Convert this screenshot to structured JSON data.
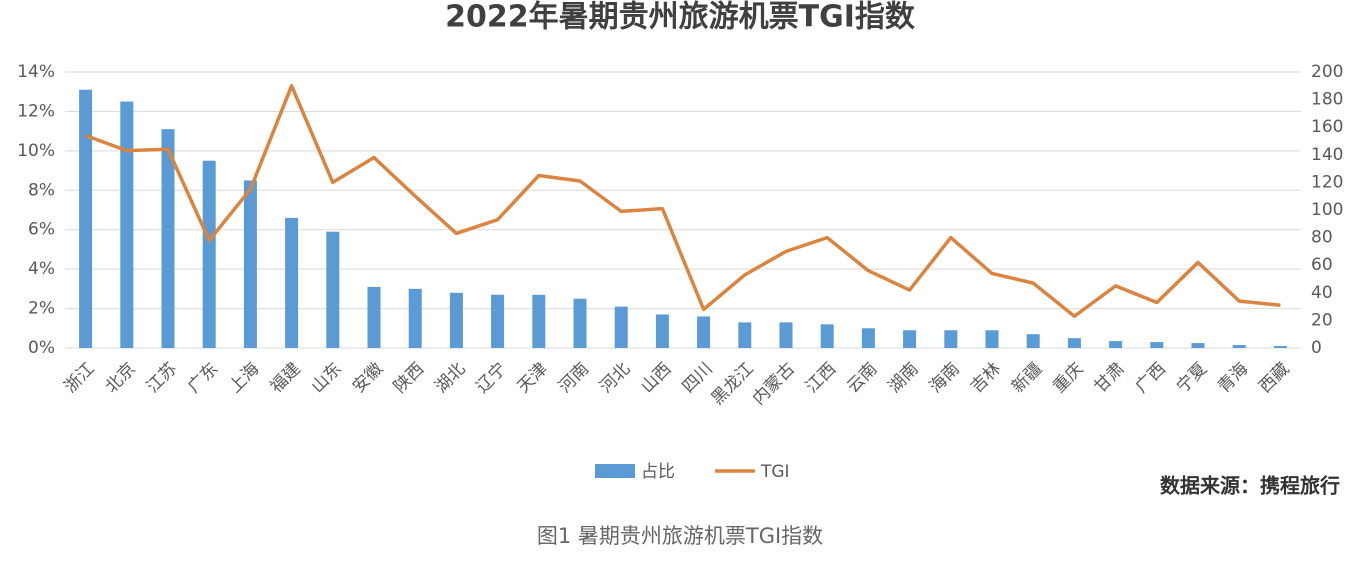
{
  "chart_data": {
    "type": "bar",
    "title": "2022年暑期贵州旅游机票TGI指数",
    "categories": [
      "浙江",
      "北京",
      "江苏",
      "广东",
      "上海",
      "福建",
      "山东",
      "安徽",
      "陕西",
      "湖北",
      "辽宁",
      "天津",
      "河南",
      "河北",
      "山西",
      "四川",
      "黑龙江",
      "内蒙古",
      "江西",
      "云南",
      "湖南",
      "海南",
      "吉林",
      "新疆",
      "重庆",
      "甘肃",
      "广西",
      "宁夏",
      "青海",
      "西藏"
    ],
    "series": [
      {
        "name": "占比",
        "type": "bar",
        "color": "#5b9bd5",
        "values": [
          13.1,
          12.5,
          11.1,
          9.5,
          8.5,
          6.6,
          5.9,
          3.1,
          3.0,
          2.8,
          2.7,
          2.7,
          2.5,
          2.1,
          1.7,
          1.6,
          1.3,
          1.3,
          1.2,
          1.0,
          0.9,
          0.9,
          0.9,
          0.7,
          0.5,
          0.35,
          0.3,
          0.25,
          0.15,
          0.1
        ]
      },
      {
        "name": "TGI",
        "type": "line",
        "color": "#db8440",
        "axis": "y2",
        "values": [
          154,
          143,
          144,
          78,
          115,
          190,
          120,
          138,
          110,
          83,
          93,
          125,
          121,
          99,
          101,
          28,
          53,
          70,
          80,
          56,
          42,
          80,
          54,
          47,
          23,
          45,
          33,
          62,
          34,
          31
        ]
      }
    ],
    "ylim": [
      0,
      14
    ],
    "yticks": [
      {
        "value": 0,
        "label": "0%"
      },
      {
        "value": 2,
        "label": "2%"
      },
      {
        "value": 4,
        "label": "4%"
      },
      {
        "value": 6,
        "label": "6%"
      },
      {
        "value": 8,
        "label": "8%"
      },
      {
        "value": 10,
        "label": "10%"
      },
      {
        "value": 12,
        "label": "12%"
      },
      {
        "value": 14,
        "label": "14%"
      }
    ],
    "y2lim": [
      0,
      200
    ],
    "y2ticks": [
      0,
      20,
      40,
      60,
      80,
      100,
      120,
      140,
      160,
      180,
      200
    ],
    "grid": true,
    "legend": "bottom",
    "source": "数据来源：携程旅行"
  },
  "caption": "图1 暑期贵州旅游机票TGI指数"
}
